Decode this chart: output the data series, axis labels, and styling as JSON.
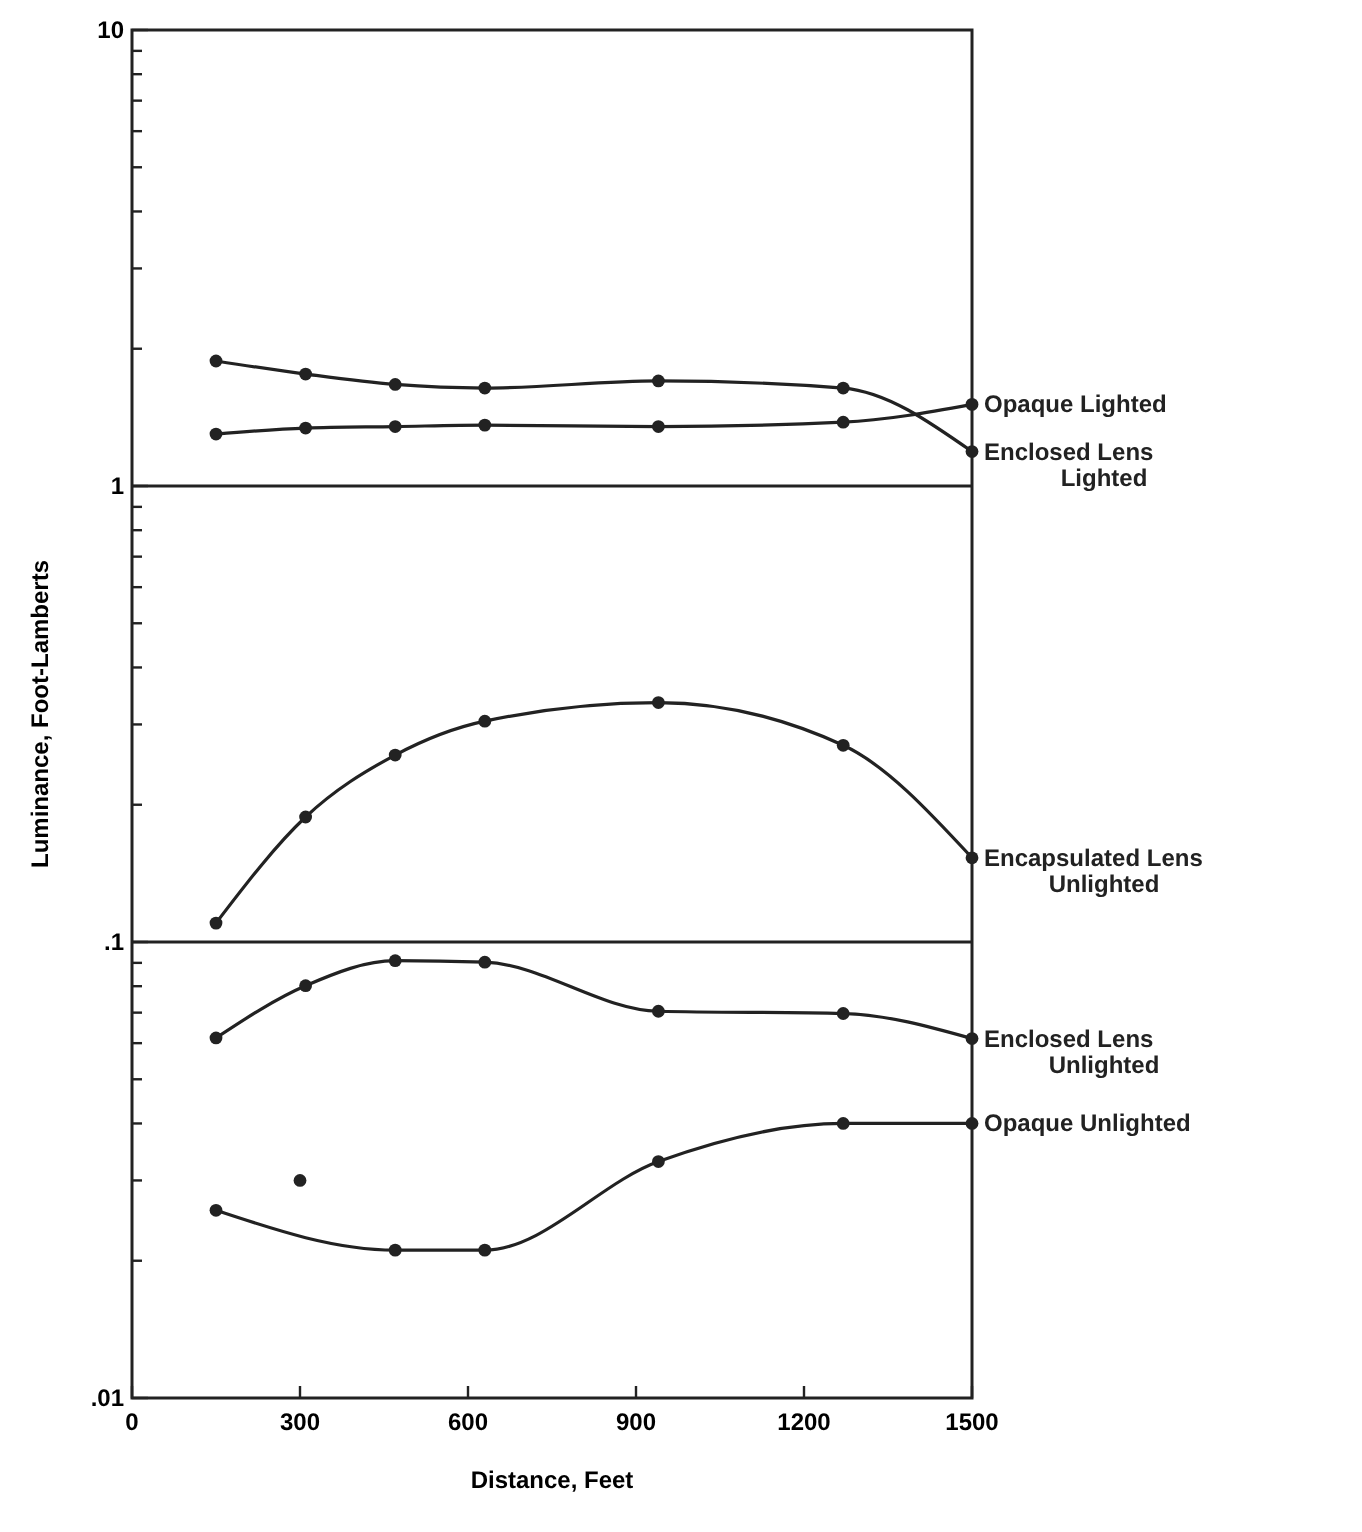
{
  "chart_data": {
    "type": "line",
    "xlabel": "Distance, Feet",
    "ylabel": "Luminance, Foot-Lamberts",
    "log": "y",
    "marker": "circle",
    "line_style": "solid",
    "grid": false,
    "xlim": [
      0,
      1500
    ],
    "xticks": [
      0,
      300,
      600,
      900,
      1200,
      1500
    ],
    "ylim": [
      0.01,
      10
    ],
    "yticks": [
      {
        "value": 0.01,
        "label": ".01"
      },
      {
        "value": 0.02,
        "label": null
      },
      {
        "value": 0.03,
        "label": null
      },
      {
        "value": 0.04,
        "label": null
      },
      {
        "value": 0.05,
        "label": null
      },
      {
        "value": 0.06,
        "label": null
      },
      {
        "value": 0.07,
        "label": null
      },
      {
        "value": 0.08,
        "label": null
      },
      {
        "value": 0.09,
        "label": null
      },
      {
        "value": 0.1,
        "label": ".1"
      },
      {
        "value": 0.2,
        "label": null
      },
      {
        "value": 0.3,
        "label": null
      },
      {
        "value": 0.4,
        "label": null
      },
      {
        "value": 0.5,
        "label": null
      },
      {
        "value": 0.6,
        "label": null
      },
      {
        "value": 0.7,
        "label": null
      },
      {
        "value": 0.8,
        "label": null
      },
      {
        "value": 0.9,
        "label": null
      },
      1,
      {
        "value": 2,
        "label": null
      },
      {
        "value": 3,
        "label": null
      },
      {
        "value": 4,
        "label": null
      },
      {
        "value": 5,
        "label": null
      },
      {
        "value": 6,
        "label": null
      },
      {
        "value": 7,
        "label": null
      },
      {
        "value": 8,
        "label": null
      },
      {
        "value": 9,
        "label": null
      },
      10
    ],
    "ref_lines": [
      {
        "axis": "y",
        "value": 1,
        "color": "#222222"
      },
      {
        "axis": "y",
        "value": 0.1,
        "color": "#222222"
      }
    ],
    "x": [
      150,
      310,
      470,
      630,
      940,
      1270,
      1500
    ],
    "series": [
      {
        "name": "Opaque Lighted",
        "color": "#222222",
        "values": [
          1.3,
          1.34,
          1.35,
          1.36,
          1.35,
          1.38,
          1.51
        ]
      },
      {
        "name": "Enclosed Lens Lighted",
        "color": "#222222",
        "values": [
          1.88,
          1.76,
          1.67,
          1.64,
          1.7,
          1.64,
          1.19
        ]
      },
      {
        "name": "Encapsulated Lens Unlighted",
        "color": "#222222",
        "values": [
          0.11,
          0.188,
          0.257,
          0.305,
          0.335,
          0.27,
          0.153
        ]
      },
      {
        "name": "Enclosed Lens Unlighted",
        "color": "#222222",
        "values": [
          0.0616,
          0.0802,
          0.091,
          0.0903,
          0.0705,
          0.0697,
          0.0614
        ]
      },
      {
        "name": "Opaque Unlighted",
        "color": "#222222",
        "x": [
          150,
          470,
          630,
          940,
          1270,
          1500
        ],
        "values": [
          0.0258,
          0.0211,
          0.0211,
          0.033,
          0.04,
          0.04
        ]
      },
      {
        "type": "scatter",
        "color": "#222222",
        "x": [
          300
        ],
        "values": [
          0.03
        ]
      }
    ]
  }
}
